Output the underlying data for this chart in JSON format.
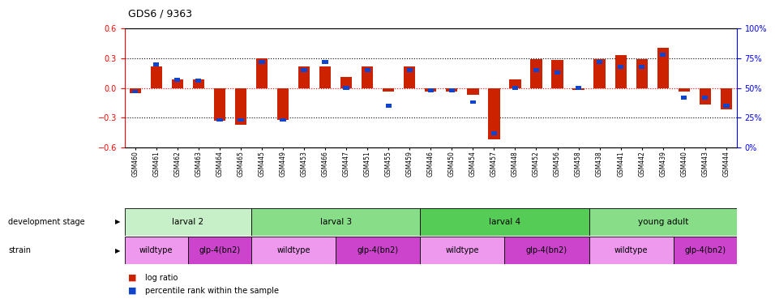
{
  "title": "GDS6 / 9363",
  "samples": [
    "GSM460",
    "GSM461",
    "GSM462",
    "GSM463",
    "GSM464",
    "GSM465",
    "GSM445",
    "GSM449",
    "GSM453",
    "GSM466",
    "GSM447",
    "GSM451",
    "GSM455",
    "GSM459",
    "GSM446",
    "GSM450",
    "GSM454",
    "GSM457",
    "GSM448",
    "GSM452",
    "GSM456",
    "GSM458",
    "GSM438",
    "GSM441",
    "GSM442",
    "GSM439",
    "GSM440",
    "GSM443",
    "GSM444"
  ],
  "log_ratios": [
    -0.05,
    0.22,
    0.09,
    0.09,
    -0.33,
    -0.37,
    0.3,
    -0.32,
    0.22,
    0.22,
    0.11,
    0.22,
    -0.04,
    0.22,
    -0.04,
    -0.04,
    -0.07,
    -0.52,
    0.09,
    0.29,
    0.28,
    -0.02,
    0.29,
    0.33,
    0.29,
    0.41,
    -0.04,
    -0.17,
    -0.22
  ],
  "percentile_ranks": [
    47,
    70,
    57,
    56,
    23,
    23,
    72,
    23,
    65,
    72,
    50,
    65,
    35,
    65,
    48,
    48,
    38,
    12,
    50,
    65,
    63,
    50,
    72,
    68,
    68,
    78,
    42,
    42,
    35
  ],
  "ylim_left": [
    -0.6,
    0.6
  ],
  "ylim_right": [
    0,
    100
  ],
  "yticks_left": [
    -0.6,
    -0.3,
    0.0,
    0.3,
    0.6
  ],
  "yticks_right": [
    0,
    25,
    50,
    75,
    100
  ],
  "development_stages": [
    {
      "label": "larval 2",
      "start": 0,
      "end": 6,
      "color": "#c8f0c8"
    },
    {
      "label": "larval 3",
      "start": 6,
      "end": 14,
      "color": "#88dd88"
    },
    {
      "label": "larval 4",
      "start": 14,
      "end": 22,
      "color": "#55cc55"
    },
    {
      "label": "young adult",
      "start": 22,
      "end": 29,
      "color": "#88dd88"
    }
  ],
  "strains": [
    {
      "label": "wildtype",
      "start": 0,
      "end": 3,
      "color": "#ee99ee"
    },
    {
      "label": "glp-4(bn2)",
      "start": 3,
      "end": 6,
      "color": "#cc44cc"
    },
    {
      "label": "wildtype",
      "start": 6,
      "end": 10,
      "color": "#ee99ee"
    },
    {
      "label": "glp-4(bn2)",
      "start": 10,
      "end": 14,
      "color": "#cc44cc"
    },
    {
      "label": "wildtype",
      "start": 14,
      "end": 18,
      "color": "#ee99ee"
    },
    {
      "label": "glp-4(bn2)",
      "start": 18,
      "end": 22,
      "color": "#cc44cc"
    },
    {
      "label": "wildtype",
      "start": 22,
      "end": 26,
      "color": "#ee99ee"
    },
    {
      "label": "glp-4(bn2)",
      "start": 26,
      "end": 29,
      "color": "#cc44cc"
    }
  ],
  "bar_color_red": "#cc2200",
  "bar_color_blue": "#1144cc",
  "bar_width": 0.55,
  "blue_bar_width": 0.28,
  "blue_bar_height": 0.038
}
